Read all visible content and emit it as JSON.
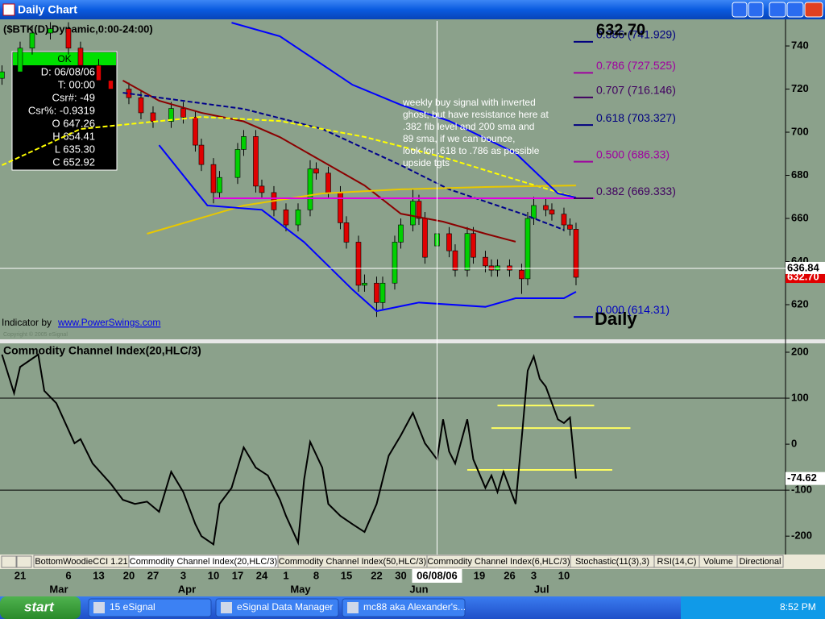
{
  "window": {
    "title": "Daily Chart"
  },
  "chart_data": [
    {
      "type": "candlestick",
      "title": "($BTK(D) Dynamic,0:00-24:00)",
      "x": [
        -3,
        0,
        2,
        5,
        8,
        10,
        13,
        15,
        18,
        20,
        22,
        25,
        27,
        29,
        30,
        32,
        33,
        36,
        37,
        39,
        40,
        42,
        44,
        46,
        48,
        49,
        51,
        53,
        54,
        56,
        57,
        59,
        60,
        62,
        63,
        65,
        66,
        67,
        69,
        71,
        72,
        74,
        75,
        77,
        78,
        79,
        81,
        83,
        84,
        85,
        87,
        88,
        90,
        91,
        92
      ],
      "open": [
        725,
        728,
        739,
        746,
        748,
        739,
        731,
        724,
        720,
        716,
        709,
        705,
        711,
        707,
        694,
        685,
        672,
        679,
        692,
        698,
        675,
        672,
        664,
        657,
        664,
        683,
        681,
        672,
        658,
        649,
        629,
        630,
        621,
        630,
        649,
        657,
        668,
        660,
        647.26,
        652.92,
        645,
        636,
        653,
        642,
        638,
        636,
        638,
        636,
        632,
        660,
        666,
        664,
        662,
        657,
        655
      ],
      "high": [
        731,
        742,
        749,
        751,
        751,
        742,
        734,
        727,
        723,
        719,
        712,
        714,
        714,
        710,
        697,
        688,
        682,
        695,
        701,
        701,
        678,
        675,
        667,
        667,
        687,
        686,
        684,
        675,
        661,
        652,
        634,
        633,
        633,
        652,
        660,
        674,
        671,
        663,
        654.41,
        656,
        648,
        656,
        656,
        645,
        641,
        641,
        641,
        639,
        663,
        670,
        669,
        667,
        665,
        660,
        658
      ],
      "low": [
        722,
        725,
        736,
        743,
        736,
        728,
        721,
        717,
        713,
        706,
        702,
        702,
        704,
        691,
        682,
        667,
        669,
        676,
        689,
        672,
        669,
        661,
        654,
        654,
        661,
        678,
        669,
        655,
        646,
        626,
        626,
        614.31,
        618,
        627,
        646,
        654,
        657,
        639,
        635.3,
        642,
        633,
        633,
        639,
        635,
        633,
        633,
        633,
        625,
        629,
        657,
        661,
        659,
        654,
        652,
        629
      ],
      "close": [
        728,
        739,
        746,
        748,
        739,
        731,
        724,
        720,
        716,
        709,
        705,
        711,
        707,
        694,
        685,
        672,
        679,
        692,
        698,
        675,
        672,
        664,
        657,
        664,
        683,
        681,
        672,
        658,
        649,
        629,
        630,
        621,
        630,
        649,
        657,
        668,
        660,
        642,
        652.92,
        645,
        636,
        653,
        642,
        638,
        636,
        638,
        636,
        632,
        660,
        666,
        664,
        662,
        657,
        655,
        632.7
      ],
      "last_label": "632.70",
      "xlim": [
        -3.33,
        126.67
      ],
      "ylim": [
        604.3,
        751.6
      ],
      "yticks": [
        620,
        640,
        660,
        680,
        700,
        720,
        740
      ],
      "cursor_price": 636.84,
      "lines": [
        {
          "color": "#8b0000",
          "dash": false,
          "x": [
            17,
            23,
            30,
            37,
            43,
            50,
            57,
            63,
            70,
            77,
            82
          ],
          "values": [
            724,
            714.6,
            709,
            705,
            697.7,
            686.5,
            675.3,
            662.2,
            658.5,
            652.9,
            649.2
          ]
        },
        {
          "color": "#00008b",
          "dash": true,
          "x": [
            17,
            37,
            50,
            63,
            71,
            83,
            90
          ],
          "values": [
            718.3,
            710.8,
            701.5,
            684.7,
            673.5,
            662.2,
            654.7
          ]
        },
        {
          "color": "#ffff00",
          "dash": true,
          "x": [
            -3,
            10,
            30,
            43,
            57,
            70,
            83,
            92
          ],
          "values": [
            684.7,
            701.5,
            707.1,
            705.2,
            697.8,
            688.4,
            677.2,
            669.7
          ]
        },
        {
          "color": "#e8c800",
          "dash": false,
          "x": [
            21,
            37,
            50,
            63,
            77,
            92
          ],
          "values": [
            652.9,
            666,
            671.6,
            673.5,
            674.6,
            675.3
          ]
        },
        {
          "color": "#0000ff",
          "dash": false,
          "x": [
            23,
            31,
            40,
            47,
            55,
            59,
            66,
            77,
            82,
            90,
            92
          ],
          "values": [
            694,
            666,
            664,
            649,
            627,
            617,
            621,
            619,
            623,
            623,
            626
          ]
        },
        {
          "color": "#0000ff",
          "dash": false,
          "x": [
            35,
            43,
            50,
            55,
            63,
            71,
            82,
            89,
            92
          ],
          "values": [
            750.8,
            744.5,
            731.4,
            722,
            712.7,
            705.2,
            690.3,
            671.6,
            669.7
          ]
        },
        {
          "color": "#e000e0",
          "dash": false,
          "x": [
            32,
            95
          ],
          "values": [
            669.333,
            669.333
          ]
        }
      ],
      "fib_levels": [
        {
          "value": 741.929,
          "label": "0.886 (741.929)",
          "color": "#000080"
        },
        {
          "value": 727.525,
          "label": "0.786 (727.525)",
          "color": "#a000a0"
        },
        {
          "value": 716.146,
          "label": "0.707 (716.146)",
          "color": "#400060"
        },
        {
          "value": 703.327,
          "label": "0.618 (703.327)",
          "color": "#000080"
        },
        {
          "value": 686.33,
          "label": "0.500 (686.33)",
          "color": "#a000a0"
        },
        {
          "value": 669.333,
          "label": "0.382 (669.333)",
          "color": "#400060"
        },
        {
          "value": 614.31,
          "label": "0.000 (614.31)",
          "color": "#0000c0"
        }
      ],
      "annotation": [
        "weekly buy signal with inverted",
        "ghost; but have resistance here at",
        ".382 fib level and 200 sma and",
        "89 sma, if we can bounce,",
        "look for .618 to .786 as possible",
        "upside tgts"
      ],
      "watermark": "Daily",
      "credit": "Indicator by",
      "credit_link": "www.PowerSwings.com",
      "copyright": "Copyright © 2005 eSignal",
      "data_window": {
        "header": "OK",
        "rows": [
          "D: 06/08/06",
          "T: 00:00",
          "Csr#: -49",
          "Csr%: -0.9319",
          "O 647.26",
          "H 654.41",
          "L 635.30",
          "C 652.92"
        ]
      }
    },
    {
      "type": "line",
      "title": "Commodity Channel Index(20,HLC/3)",
      "color": "#000000",
      "x": [
        -3,
        -1,
        0,
        3,
        4,
        6,
        9,
        10,
        12,
        15,
        17,
        19,
        21,
        23,
        25,
        27,
        29,
        30,
        32,
        33,
        35,
        37,
        39,
        41,
        43,
        44,
        46,
        47,
        48,
        50,
        51,
        53,
        55,
        57,
        59,
        61,
        63,
        65,
        67,
        69,
        70,
        71,
        72,
        74,
        75,
        77,
        78,
        79,
        80,
        82,
        83,
        84,
        85,
        86,
        87,
        89,
        90,
        91,
        92
      ],
      "values": [
        195,
        111,
        168,
        195,
        116,
        89,
        2,
        11,
        -42,
        -86,
        -121,
        -130,
        -125,
        -147,
        -60,
        -104,
        -174,
        -200,
        -218,
        -130,
        -95,
        -7,
        -51,
        -68,
        -121,
        -156,
        -214,
        -77,
        5,
        -51,
        -130,
        -156,
        -174,
        -191,
        -130,
        -25,
        19,
        68,
        2,
        -33,
        54,
        -16,
        -42,
        54,
        -33,
        -95,
        -68,
        -104,
        -60,
        -130,
        11,
        160,
        191,
        142,
        125,
        54,
        46,
        58,
        -74.62
      ],
      "xlim": [
        -3.33,
        126.67
      ],
      "ylim": [
        -240,
        215.8
      ],
      "yticks": [
        -200,
        -100,
        0,
        100,
        200
      ],
      "hlines": [
        100,
        -100
      ],
      "level_lines": [
        {
          "x": [
            79,
            95
          ],
          "value": 84
        },
        {
          "x": [
            78,
            101
          ],
          "value": 35
        },
        {
          "x": [
            74,
            98
          ],
          "value": -56
        }
      ],
      "xticks": [
        {
          "value": 0,
          "label": "21"
        },
        {
          "value": 8,
          "label": "6"
        },
        {
          "value": 13,
          "label": "13"
        },
        {
          "value": 18,
          "label": "20"
        },
        {
          "value": 22,
          "label": "27"
        },
        {
          "value": 27,
          "label": "3"
        },
        {
          "value": 32,
          "label": "10"
        },
        {
          "value": 36,
          "label": "17"
        },
        {
          "value": 40,
          "label": "24"
        },
        {
          "value": 44,
          "label": "1"
        },
        {
          "value": 49,
          "label": "8"
        },
        {
          "value": 54,
          "label": "15"
        },
        {
          "value": 59,
          "label": "22"
        },
        {
          "value": 63,
          "label": "30"
        },
        {
          "value": 69,
          "label": "06/08/06"
        },
        {
          "value": 76,
          "label": "19"
        },
        {
          "value": 81,
          "label": "26"
        },
        {
          "value": 85,
          "label": "3"
        },
        {
          "value": 90,
          "label": "10"
        }
      ],
      "cursor_tick": 14,
      "month_ticks": [
        {
          "value": 6.4,
          "label": "Mar"
        },
        {
          "value": 27.6,
          "label": "Apr"
        },
        {
          "value": 46.4,
          "label": "May"
        },
        {
          "value": 66,
          "label": "Jun"
        },
        {
          "value": 86.3,
          "label": "Jul"
        }
      ]
    }
  ],
  "tabs": [
    "BottomWoodieCCI 1.21",
    "Commodity Channel Index(20,HLC/3)",
    "Commodity Channel Index(50,HLC/3)",
    "Commodity Channel Index(6,HLC/3)",
    "Stochastic(11(3),3)",
    "RSI(14,C)",
    "Volume",
    "Directional"
  ],
  "taskbar": {
    "start": "start",
    "items": [
      "15 eSignal",
      "eSignal Data Manager",
      "mc88 aka Alexander's..."
    ],
    "clock": "8:52 PM"
  }
}
